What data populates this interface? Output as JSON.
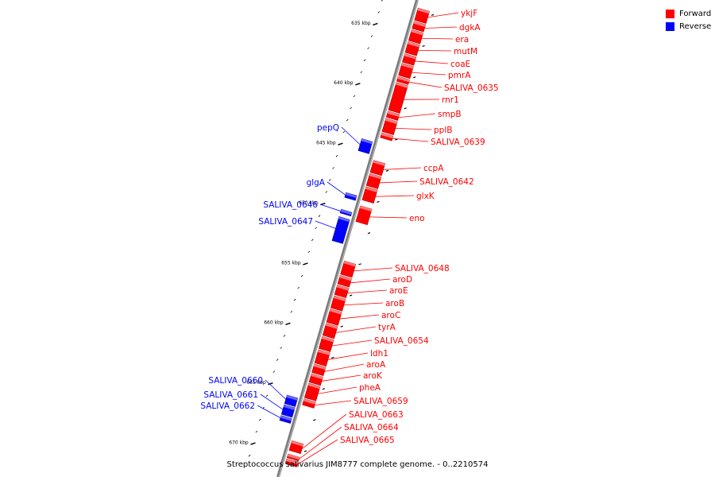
{
  "caption": "Streptococcus salivarius JIM8777 complete genome. - 0..2210574",
  "colors": {
    "forward": "#ff0000",
    "reverse": "#0000ff",
    "axis": "#808080"
  },
  "legend": [
    {
      "label": "Forward",
      "color": "#ff0000"
    },
    {
      "label": "Reverse",
      "color": "#0000ff"
    }
  ],
  "ruler": {
    "labels": [
      {
        "text": "635 kbp",
        "kbp": 635
      },
      {
        "text": "640 kbp",
        "kbp": 640
      },
      {
        "text": "645 kbp",
        "kbp": 645
      },
      {
        "text": "650 kbp",
        "kbp": 650
      },
      {
        "text": "655 kbp",
        "kbp": 655
      },
      {
        "text": "660 kbp",
        "kbp": 660
      },
      {
        "text": "665 kbp",
        "kbp": 665
      },
      {
        "text": "670 kbp",
        "kbp": 670
      }
    ]
  },
  "genes": [
    {
      "name": "ykjF",
      "strand": "forward",
      "start_kbp": 632.8,
      "end_kbp": 633.8
    },
    {
      "name": "dgkA",
      "strand": "forward",
      "start_kbp": 633.9,
      "end_kbp": 634.5
    },
    {
      "name": "era",
      "strand": "forward",
      "start_kbp": 634.6,
      "end_kbp": 635.5
    },
    {
      "name": "mutM",
      "strand": "forward",
      "start_kbp": 635.6,
      "end_kbp": 636.5
    },
    {
      "name": "coaE",
      "strand": "forward",
      "start_kbp": 636.6,
      "end_kbp": 637.3
    },
    {
      "name": "pmrA",
      "strand": "forward",
      "start_kbp": 637.4,
      "end_kbp": 638.4
    },
    {
      "name": "SALIVA_0635",
      "strand": "forward",
      "start_kbp": 638.5,
      "end_kbp": 638.9
    },
    {
      "name": "rnr1",
      "strand": "forward",
      "start_kbp": 639.0,
      "end_kbp": 641.3
    },
    {
      "name": "smpB",
      "strand": "forward",
      "start_kbp": 641.4,
      "end_kbp": 641.9
    },
    {
      "name": "pplB",
      "strand": "forward",
      "start_kbp": 642.0,
      "end_kbp": 643.1
    },
    {
      "name": "SALIVA_0639",
      "strand": "forward",
      "start_kbp": 643.2,
      "end_kbp": 643.6
    },
    {
      "name": "pepQ",
      "strand": "reverse",
      "start_kbp": 644.1,
      "end_kbp": 645.1
    },
    {
      "name": "ccpA",
      "strand": "forward",
      "start_kbp": 645.5,
      "end_kbp": 646.5
    },
    {
      "name": "SALIVA_0642",
      "strand": "forward",
      "start_kbp": 646.6,
      "end_kbp": 647.6
    },
    {
      "name": "glxK",
      "strand": "forward",
      "start_kbp": 647.7,
      "end_kbp": 648.8
    },
    {
      "name": "glgA",
      "strand": "reverse",
      "start_kbp": 648.6,
      "end_kbp": 649.0
    },
    {
      "name": "eno",
      "strand": "forward",
      "start_kbp": 649.3,
      "end_kbp": 650.6
    },
    {
      "name": "SALIVA_0646",
      "strand": "reverse",
      "start_kbp": 650.0,
      "end_kbp": 650.3
    },
    {
      "name": "SALIVA_0647",
      "strand": "reverse",
      "start_kbp": 650.6,
      "end_kbp": 652.6
    },
    {
      "name": "SALIVA_0648",
      "strand": "forward",
      "start_kbp": 653.9,
      "end_kbp": 655.0
    },
    {
      "name": "aroD",
      "strand": "forward",
      "start_kbp": 655.1,
      "end_kbp": 655.8
    },
    {
      "name": "aroE",
      "strand": "forward",
      "start_kbp": 655.9,
      "end_kbp": 656.7
    },
    {
      "name": "aroB",
      "strand": "forward",
      "start_kbp": 656.8,
      "end_kbp": 657.8
    },
    {
      "name": "aroC",
      "strand": "forward",
      "start_kbp": 657.9,
      "end_kbp": 659.0
    },
    {
      "name": "tyrA",
      "strand": "forward",
      "start_kbp": 659.1,
      "end_kbp": 660.1
    },
    {
      "name": "SALIVA_0654",
      "strand": "forward",
      "start_kbp": 660.2,
      "end_kbp": 661.2
    },
    {
      "name": "ldh1",
      "strand": "forward",
      "start_kbp": 661.3,
      "end_kbp": 662.4
    },
    {
      "name": "aroA",
      "strand": "forward",
      "start_kbp": 662.5,
      "end_kbp": 663.2
    },
    {
      "name": "aroK",
      "strand": "forward",
      "start_kbp": 663.3,
      "end_kbp": 664.0
    },
    {
      "name": "pheA",
      "strand": "forward",
      "start_kbp": 664.1,
      "end_kbp": 665.3
    },
    {
      "name": "SALIVA_0659",
      "strand": "forward",
      "start_kbp": 665.4,
      "end_kbp": 665.9
    },
    {
      "name": "SALIVA_0660",
      "strand": "reverse",
      "start_kbp": 665.5,
      "end_kbp": 666.2
    },
    {
      "name": "SALIVA_0661",
      "strand": "reverse",
      "start_kbp": 666.3,
      "end_kbp": 667.1
    },
    {
      "name": "SALIVA_0662",
      "strand": "reverse",
      "start_kbp": 667.2,
      "end_kbp": 667.6
    },
    {
      "name": "SALIVA_0663",
      "strand": "forward",
      "start_kbp": 668.9,
      "end_kbp": 669.7
    },
    {
      "name": "SALIVA_0664",
      "strand": "forward",
      "start_kbp": 670.0,
      "end_kbp": 670.3
    },
    {
      "name": "SALIVA_0665",
      "strand": "forward",
      "start_kbp": 670.4,
      "end_kbp": 670.8
    }
  ]
}
